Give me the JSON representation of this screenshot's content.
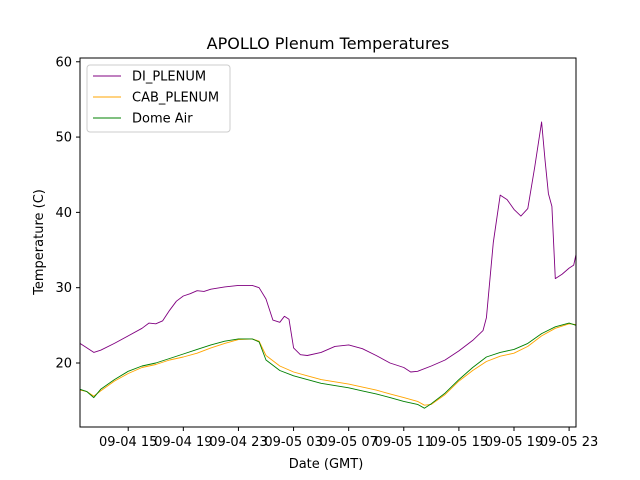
{
  "chart_data": {
    "type": "line",
    "title": "APOLLO Plenum Temperatures",
    "xlabel": "Date (GMT)",
    "ylabel": "Temperature (C)",
    "xlim": [
      "09-04 11:30",
      "09-05 23:30"
    ],
    "ylim": [
      11.5,
      60.5
    ],
    "x_ticks": [
      "09-04 15",
      "09-04 19",
      "09-04 23",
      "09-05 03",
      "09-05 07",
      "09-05 11",
      "09-05 15",
      "09-05 19",
      "09-05 23"
    ],
    "y_ticks": [
      20,
      30,
      40,
      50,
      60
    ],
    "grid": false,
    "legend_position": "top-left",
    "series": [
      {
        "name": "DI_PLENUM",
        "color": "#800080",
        "points": [
          [
            "09-04 11:30",
            22.6
          ],
          [
            "09-04 12:00",
            22.0
          ],
          [
            "09-04 12:30",
            21.4
          ],
          [
            "09-04 13:00",
            21.7
          ],
          [
            "09-04 14:00",
            22.6
          ],
          [
            "09-04 15:00",
            23.6
          ],
          [
            "09-04 16:00",
            24.6
          ],
          [
            "09-04 16:30",
            25.3
          ],
          [
            "09-04 17:00",
            25.2
          ],
          [
            "09-04 17:30",
            25.6
          ],
          [
            "09-04 18:00",
            27.0
          ],
          [
            "09-04 18:30",
            28.2
          ],
          [
            "09-04 19:00",
            28.9
          ],
          [
            "09-04 19:30",
            29.2
          ],
          [
            "09-04 20:00",
            29.6
          ],
          [
            "09-04 20:30",
            29.5
          ],
          [
            "09-04 21:00",
            29.8
          ],
          [
            "09-04 22:00",
            30.1
          ],
          [
            "09-04 23:00",
            30.3
          ],
          [
            "09-05 00:00",
            30.3
          ],
          [
            "09-05 00:30",
            30.0
          ],
          [
            "09-05 01:00",
            28.5
          ],
          [
            "09-05 01:30",
            25.7
          ],
          [
            "09-05 02:00",
            25.4
          ],
          [
            "09-05 02:20",
            26.2
          ],
          [
            "09-05 02:40",
            25.8
          ],
          [
            "09-05 03:00",
            22.0
          ],
          [
            "09-05 03:30",
            21.1
          ],
          [
            "09-05 04:00",
            21.0
          ],
          [
            "09-05 05:00",
            21.4
          ],
          [
            "09-05 06:00",
            22.2
          ],
          [
            "09-05 07:00",
            22.4
          ],
          [
            "09-05 08:00",
            21.9
          ],
          [
            "09-05 09:00",
            21.0
          ],
          [
            "09-05 10:00",
            20.0
          ],
          [
            "09-05 11:00",
            19.4
          ],
          [
            "09-05 11:30",
            18.8
          ],
          [
            "09-05 12:00",
            18.9
          ],
          [
            "09-05 13:00",
            19.6
          ],
          [
            "09-05 14:00",
            20.4
          ],
          [
            "09-05 15:00",
            21.6
          ],
          [
            "09-05 16:00",
            23.0
          ],
          [
            "09-05 16:45",
            24.3
          ],
          [
            "09-05 17:00",
            26.0
          ],
          [
            "09-05 17:30",
            36.0
          ],
          [
            "09-05 18:00",
            42.3
          ],
          [
            "09-05 18:30",
            41.7
          ],
          [
            "09-05 19:00",
            40.4
          ],
          [
            "09-05 19:30",
            39.5
          ],
          [
            "09-05 20:00",
            40.5
          ],
          [
            "09-05 20:30",
            46.0
          ],
          [
            "09-05 21:00",
            52.0
          ],
          [
            "09-05 21:15",
            47.0
          ],
          [
            "09-05 21:30",
            42.5
          ],
          [
            "09-05 21:45",
            40.8
          ],
          [
            "09-05 22:00",
            31.2
          ],
          [
            "09-05 22:30",
            31.8
          ],
          [
            "09-05 23:00",
            32.6
          ],
          [
            "09-05 23:20",
            33.0
          ],
          [
            "09-05 23:30",
            34.4
          ]
        ]
      },
      {
        "name": "CAB_PLENUM",
        "color": "#ffa500",
        "points": [
          [
            "09-04 11:30",
            16.4
          ],
          [
            "09-04 12:00",
            16.2
          ],
          [
            "09-04 12:30",
            15.6
          ],
          [
            "09-04 13:00",
            16.3
          ],
          [
            "09-04 14:00",
            17.6
          ],
          [
            "09-04 15:00",
            18.6
          ],
          [
            "09-04 16:00",
            19.4
          ],
          [
            "09-04 17:00",
            19.8
          ],
          [
            "09-04 18:00",
            20.4
          ],
          [
            "09-04 19:00",
            20.8
          ],
          [
            "09-04 20:00",
            21.3
          ],
          [
            "09-04 21:00",
            22.0
          ],
          [
            "09-04 22:00",
            22.6
          ],
          [
            "09-04 23:00",
            23.1
          ],
          [
            "09-05 00:00",
            23.2
          ],
          [
            "09-05 00:30",
            22.9
          ],
          [
            "09-05 01:00",
            21.0
          ],
          [
            "09-05 02:00",
            19.6
          ],
          [
            "09-05 03:00",
            18.8
          ],
          [
            "09-05 04:00",
            18.3
          ],
          [
            "09-05 05:00",
            17.8
          ],
          [
            "09-05 06:00",
            17.5
          ],
          [
            "09-05 07:00",
            17.2
          ],
          [
            "09-05 08:00",
            16.8
          ],
          [
            "09-05 09:00",
            16.4
          ],
          [
            "09-05 10:00",
            15.9
          ],
          [
            "09-05 11:00",
            15.4
          ],
          [
            "09-05 12:00",
            14.9
          ],
          [
            "09-05 12:30",
            14.4
          ],
          [
            "09-05 13:00",
            14.5
          ],
          [
            "09-05 14:00",
            15.8
          ],
          [
            "09-05 15:00",
            17.6
          ],
          [
            "09-05 16:00",
            19.0
          ],
          [
            "09-05 17:00",
            20.2
          ],
          [
            "09-05 18:00",
            20.9
          ],
          [
            "09-05 19:00",
            21.3
          ],
          [
            "09-05 20:00",
            22.2
          ],
          [
            "09-05 21:00",
            23.6
          ],
          [
            "09-05 22:00",
            24.6
          ],
          [
            "09-05 23:00",
            25.2
          ],
          [
            "09-05 23:30",
            25.1
          ]
        ]
      },
      {
        "name": "Dome Air",
        "color": "#008000",
        "points": [
          [
            "09-04 11:30",
            16.5
          ],
          [
            "09-04 12:00",
            16.2
          ],
          [
            "09-04 12:30",
            15.4
          ],
          [
            "09-04 13:00",
            16.5
          ],
          [
            "09-04 14:00",
            17.8
          ],
          [
            "09-04 15:00",
            18.9
          ],
          [
            "09-04 16:00",
            19.6
          ],
          [
            "09-04 17:00",
            20.0
          ],
          [
            "09-04 18:00",
            20.6
          ],
          [
            "09-04 19:00",
            21.2
          ],
          [
            "09-04 20:00",
            21.8
          ],
          [
            "09-04 21:00",
            22.4
          ],
          [
            "09-04 22:00",
            22.9
          ],
          [
            "09-04 23:00",
            23.2
          ],
          [
            "09-05 00:00",
            23.2
          ],
          [
            "09-05 00:30",
            22.8
          ],
          [
            "09-05 01:00",
            20.4
          ],
          [
            "09-05 02:00",
            19.0
          ],
          [
            "09-05 03:00",
            18.3
          ],
          [
            "09-05 04:00",
            17.8
          ],
          [
            "09-05 05:00",
            17.3
          ],
          [
            "09-05 06:00",
            17.0
          ],
          [
            "09-05 07:00",
            16.7
          ],
          [
            "09-05 08:00",
            16.3
          ],
          [
            "09-05 09:00",
            15.9
          ],
          [
            "09-05 10:00",
            15.4
          ],
          [
            "09-05 11:00",
            14.9
          ],
          [
            "09-05 12:00",
            14.5
          ],
          [
            "09-05 12:30",
            14.0
          ],
          [
            "09-05 13:00",
            14.6
          ],
          [
            "09-05 14:00",
            16.0
          ],
          [
            "09-05 15:00",
            17.8
          ],
          [
            "09-05 16:00",
            19.4
          ],
          [
            "09-05 17:00",
            20.8
          ],
          [
            "09-05 18:00",
            21.4
          ],
          [
            "09-05 19:00",
            21.8
          ],
          [
            "09-05 20:00",
            22.6
          ],
          [
            "09-05 21:00",
            23.9
          ],
          [
            "09-05 22:00",
            24.8
          ],
          [
            "09-05 23:00",
            25.3
          ],
          [
            "09-05 23:30",
            25.0
          ]
        ]
      }
    ]
  }
}
